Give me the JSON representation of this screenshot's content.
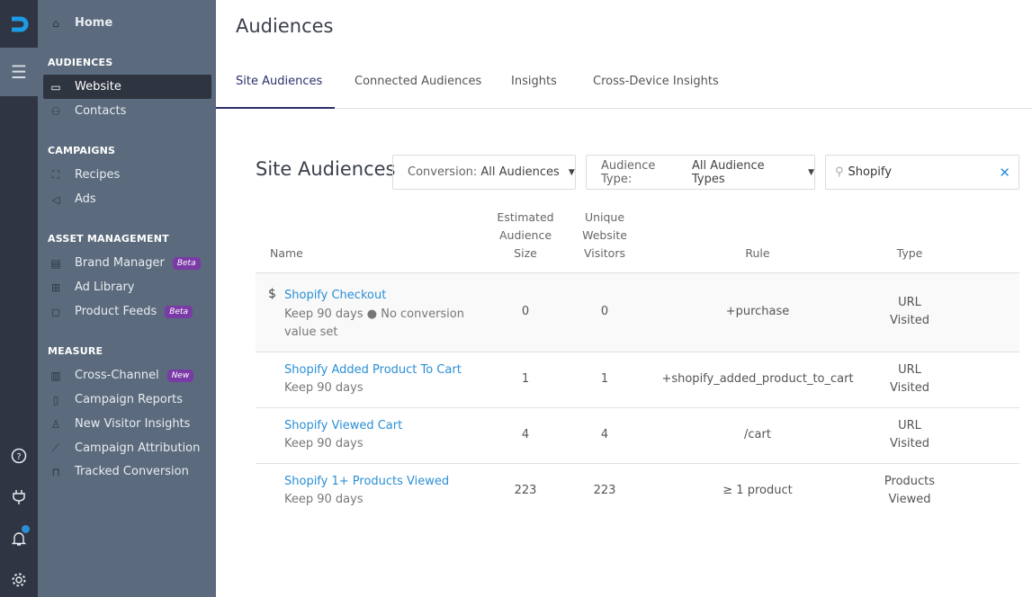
{
  "rail": {
    "icons": [
      "logo-icon",
      "menu-icon",
      "help-icon",
      "plug-icon",
      "bell-icon",
      "gear-icon"
    ],
    "notification_dot_color": "#2b8fd6"
  },
  "sidebar": {
    "home": "Home",
    "sections": [
      {
        "title": "AUDIENCES",
        "items": [
          {
            "label": "Website",
            "icon": "browser-icon",
            "active": true
          },
          {
            "label": "Contacts",
            "icon": "people-icon"
          }
        ]
      },
      {
        "title": "CAMPAIGNS",
        "items": [
          {
            "label": "Recipes",
            "icon": "sitemap-icon"
          },
          {
            "label": "Ads",
            "icon": "megaphone-icon"
          }
        ]
      },
      {
        "title": "ASSET MANAGEMENT",
        "items": [
          {
            "label": "Brand Manager",
            "icon": "id-card-icon",
            "badge": "Beta"
          },
          {
            "label": "Ad Library",
            "icon": "grid-icon"
          },
          {
            "label": "Product Feeds",
            "icon": "bag-icon",
            "badge": "Beta"
          }
        ]
      },
      {
        "title": "MEASURE",
        "items": [
          {
            "label": "Cross-Channel",
            "icon": "bar-chart-icon",
            "badge": "New"
          },
          {
            "label": "Campaign Reports",
            "icon": "report-icon"
          },
          {
            "label": "New Visitor Insights",
            "icon": "user-clock-icon"
          },
          {
            "label": "Campaign Attribution",
            "icon": "line-chart-icon"
          },
          {
            "label": "Tracked Conversion",
            "icon": "binoculars-icon"
          }
        ]
      }
    ]
  },
  "page": {
    "title": "Audiences",
    "tabs": [
      "Site Audiences",
      "Connected Audiences",
      "Insights",
      "Cross-Device Insights"
    ],
    "active_tab": "Site Audiences"
  },
  "toolbar": {
    "heading": "Site Audiences",
    "conversion_label": "Conversion:",
    "conversion_value": "All Audiences",
    "type_label": "Audience Type:",
    "type_value": "All Audience Types",
    "search_value": "Shopify"
  },
  "table": {
    "headers": {
      "name": "Name",
      "est1": "Estimated",
      "est2": "Audience",
      "est3": "Size",
      "uniq1": "Unique",
      "uniq2": "Website",
      "uniq3": "Visitors",
      "rule": "Rule",
      "type": "Type"
    },
    "rows": [
      {
        "icon": "$",
        "name": "Shopify Checkout",
        "sub1": "Keep 90 days ● No conversion",
        "sub2": "value set",
        "estimated": "0",
        "unique": "0",
        "rule": "+purchase",
        "type1": "URL",
        "type2": "Visited"
      },
      {
        "name": "Shopify Added Product To Cart",
        "sub1": "Keep 90 days",
        "estimated": "1",
        "unique": "1",
        "rule": "+shopify_added_product_to_cart",
        "type1": "URL",
        "type2": "Visited"
      },
      {
        "name": "Shopify Viewed Cart",
        "sub1": "Keep 90 days",
        "estimated": "4",
        "unique": "4",
        "rule": "/cart",
        "type1": "URL",
        "type2": "Visited"
      },
      {
        "name": "Shopify 1+ Products Viewed",
        "sub1": "Keep 90 days",
        "estimated": "223",
        "unique": "223",
        "rule": "≥ 1 product",
        "type1": "Products",
        "type2": "Viewed"
      }
    ]
  },
  "colors": {
    "link": "#2b8fd6",
    "active_tab": "#2c2f6b",
    "badge": "#7b3ba6",
    "sidebar": "#5b6b7d",
    "rail": "#2f3542"
  }
}
